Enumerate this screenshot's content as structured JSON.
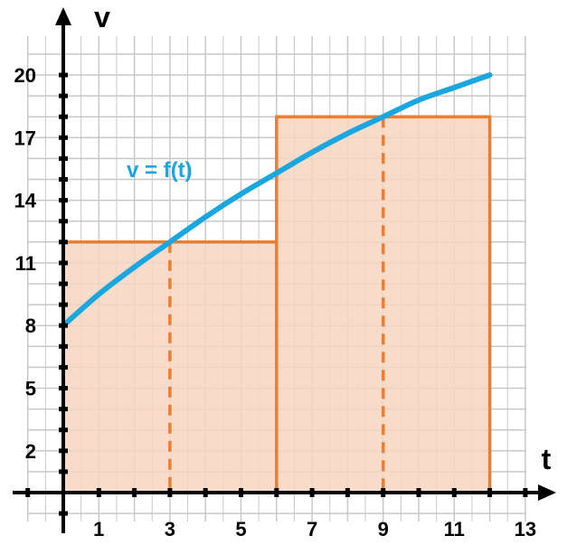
{
  "chart_data": {
    "type": "line",
    "xlabel": "t",
    "ylabel": "v",
    "xlim": [
      -1,
      13.5
    ],
    "ylim": [
      -1,
      22
    ],
    "x_ticks": [
      1,
      3,
      5,
      7,
      9,
      11,
      13
    ],
    "y_ticks": [
      2,
      5,
      8,
      11,
      14,
      17,
      20
    ],
    "grid": true,
    "curve": {
      "label": "v = f(t)",
      "color": "#1aa7e0",
      "points": [
        {
          "t": 0,
          "v": 8
        },
        {
          "t": 1,
          "v": 9.5
        },
        {
          "t": 2,
          "v": 10.8
        },
        {
          "t": 3,
          "v": 12
        },
        {
          "t": 4,
          "v": 13.2
        },
        {
          "t": 5,
          "v": 14.3
        },
        {
          "t": 6,
          "v": 15.3
        },
        {
          "t": 7,
          "v": 16.3
        },
        {
          "t": 8,
          "v": 17.2
        },
        {
          "t": 9,
          "v": 18
        },
        {
          "t": 10,
          "v": 18.8
        },
        {
          "t": 11,
          "v": 19.4
        },
        {
          "t": 12,
          "v": 20
        }
      ]
    },
    "rectangles": [
      {
        "t_start": 0,
        "t_end": 6,
        "height": 12,
        "sample_t": 3
      },
      {
        "t_start": 6,
        "t_end": 12,
        "height": 18,
        "sample_t": 9
      }
    ],
    "colors": {
      "rect_fill": "#f8d5bf",
      "rect_stroke": "#ed7d31",
      "grid": "#c8c8c8",
      "axis": "#000000"
    }
  }
}
